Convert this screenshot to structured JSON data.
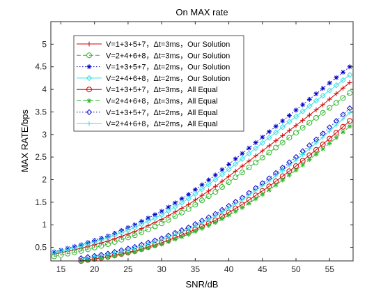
{
  "chart_data": {
    "type": "line",
    "title": "On MAX rate",
    "xlabel": "SNR/dB",
    "ylabel": "MAX RATE/bps",
    "xlim": [
      13.5,
      58.5
    ],
    "ylim": [
      0.2,
      5.5
    ],
    "xticks": [
      "15",
      "20",
      "25",
      "30",
      "35",
      "40",
      "45",
      "50",
      "55"
    ],
    "yticks": [
      "0.5",
      "1",
      "1.5",
      "2",
      "2.5",
      "3",
      "3.5",
      "4",
      "4.5",
      "5"
    ],
    "grid": false,
    "legend_position": "top-left",
    "series": [
      {
        "name": "V=1+3+5+7，Δt=3ms，Our Solution",
        "color": "#d40000",
        "linestyle": "solid",
        "marker": "plus",
        "x": [
          14,
          18,
          22,
          26,
          30,
          34,
          38,
          42,
          46,
          50,
          54,
          58
        ],
        "y": [
          0.35,
          0.48,
          0.64,
          0.85,
          1.12,
          1.45,
          1.85,
          2.3,
          2.75,
          3.2,
          3.66,
          4.15
        ]
      },
      {
        "name": "V=2+4+6+8，Δt=3ms，Our Solution",
        "color": "#2db82d",
        "linestyle": "dashed",
        "marker": "circle",
        "x": [
          14,
          18,
          22,
          26,
          30,
          34,
          38,
          42,
          46,
          50,
          54,
          58
        ],
        "y": [
          0.3,
          0.42,
          0.57,
          0.77,
          1.03,
          1.35,
          1.73,
          2.16,
          2.6,
          3.04,
          3.48,
          3.92
        ]
      },
      {
        "name": "V=1+3+5+7，Δt=2ms，Our Solution",
        "color": "#0000cc",
        "linestyle": "dotted",
        "marker": "star",
        "x": [
          14,
          18,
          22,
          26,
          30,
          34,
          38,
          42,
          46,
          50,
          54,
          58
        ],
        "y": [
          0.4,
          0.56,
          0.75,
          1.0,
          1.3,
          1.67,
          2.1,
          2.58,
          3.06,
          3.54,
          4.02,
          4.5
        ]
      },
      {
        "name": "V=2+4+6+8，Δt=2ms，Our Solution",
        "color": "#33e0e6",
        "linestyle": "solid",
        "marker": "diamond",
        "x": [
          14,
          18,
          22,
          26,
          30,
          34,
          38,
          42,
          46,
          50,
          54,
          58
        ],
        "y": [
          0.38,
          0.53,
          0.71,
          0.94,
          1.22,
          1.58,
          2.0,
          2.46,
          2.93,
          3.4,
          3.86,
          4.32
        ]
      },
      {
        "name": "V=1+3+5+7，Δt=3ms，All Equal",
        "color": "#d40000",
        "linestyle": "solid",
        "marker": "circle",
        "x": [
          18,
          22,
          26,
          30,
          34,
          38,
          42,
          46,
          50,
          54,
          58
        ],
        "y": [
          0.2,
          0.29,
          0.42,
          0.6,
          0.83,
          1.1,
          1.45,
          1.85,
          2.3,
          2.78,
          3.3
        ]
      },
      {
        "name": "V=2+4+6+8，Δt=3ms，All Equal",
        "color": "#2db82d",
        "linestyle": "dashed",
        "marker": "star",
        "x": [
          18,
          22,
          26,
          30,
          34,
          38,
          42,
          46,
          50,
          54,
          58
        ],
        "y": [
          0.19,
          0.28,
          0.4,
          0.57,
          0.79,
          1.05,
          1.38,
          1.77,
          2.21,
          2.68,
          3.18
        ]
      },
      {
        "name": "V=1+3+5+7，Δt=2ms，All Equal",
        "color": "#0000cc",
        "linestyle": "dotted",
        "marker": "diamond",
        "x": [
          18,
          22,
          26,
          30,
          34,
          38,
          42,
          46,
          50,
          54,
          58
        ],
        "y": [
          0.26,
          0.36,
          0.51,
          0.7,
          0.94,
          1.24,
          1.6,
          2.03,
          2.5,
          3.02,
          3.58
        ]
      },
      {
        "name": "V=2+4+6+8，Δt=2ms，All Equal",
        "color": "#33e0e6",
        "linestyle": "solid",
        "marker": "plus",
        "x": [
          18,
          22,
          26,
          30,
          34,
          38,
          42,
          46,
          50,
          54,
          58
        ],
        "y": [
          0.24,
          0.34,
          0.48,
          0.67,
          0.9,
          1.19,
          1.55,
          1.97,
          2.43,
          2.94,
          3.48
        ]
      }
    ]
  }
}
